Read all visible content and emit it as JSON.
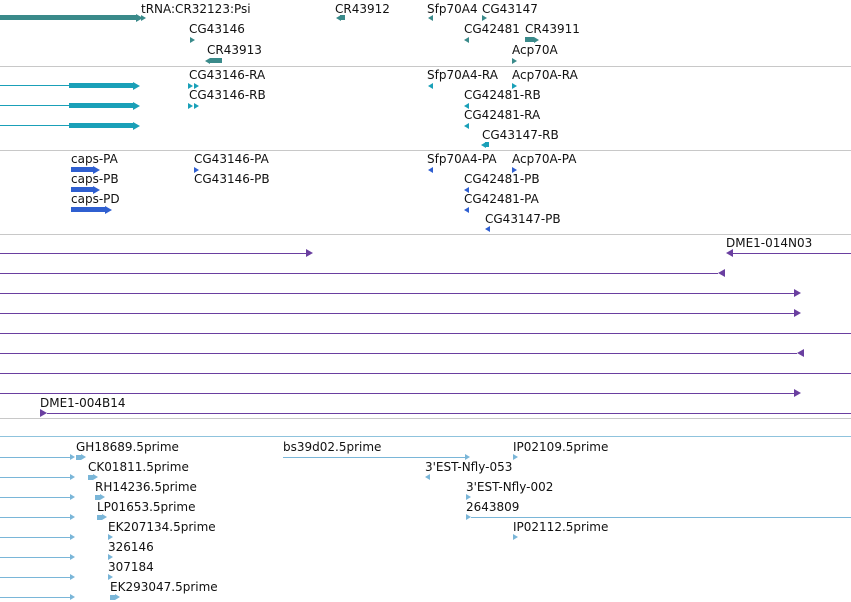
{
  "colors": {
    "noncoding": "#3a8a8a",
    "transcript": "#1aa0b8",
    "protein": "#2f5fd0",
    "clone": "#6a3fa0",
    "est": "#7ab6d8"
  },
  "tracks": {
    "noncoding_genes": {
      "labels": [
        "tRNA:CR32123:Psi",
        "CR43912",
        "Sfp70A4",
        "CG43147",
        "CG43146",
        "CG42481",
        "CR43911",
        "CR43913",
        "Acp70A"
      ]
    },
    "transcripts": {
      "labels": [
        "CG43146-RA",
        "Sfp70A4-RA",
        "Acp70A-RA",
        "CG43146-RB",
        "CG42481-RB",
        "CG42481-RA",
        "CG43147-RB"
      ]
    },
    "proteins": {
      "labels": [
        "caps-PA",
        "CG43146-PA",
        "Sfp70A4-PA",
        "Acp70A-PA",
        "caps-PB",
        "CG43146-PB",
        "CG42481-PB",
        "caps-PD",
        "CG42481-PA",
        "CG43147-PB"
      ]
    },
    "clones": {
      "labels": [
        "DME1-014N03",
        "DME1-004B14"
      ]
    },
    "ests": {
      "labels": [
        "GH18689.5prime",
        "bs39d02.5prime",
        "IP02109.5prime",
        "CK01811.5prime",
        "3'EST-Nfly-053",
        "RH14236.5prime",
        "3'EST-Nfly-002",
        "LP01653.5prime",
        "2643809",
        "EK207134.5prime",
        "IP02112.5prime",
        "326146",
        "307184",
        "EK293047.5prime"
      ]
    }
  }
}
